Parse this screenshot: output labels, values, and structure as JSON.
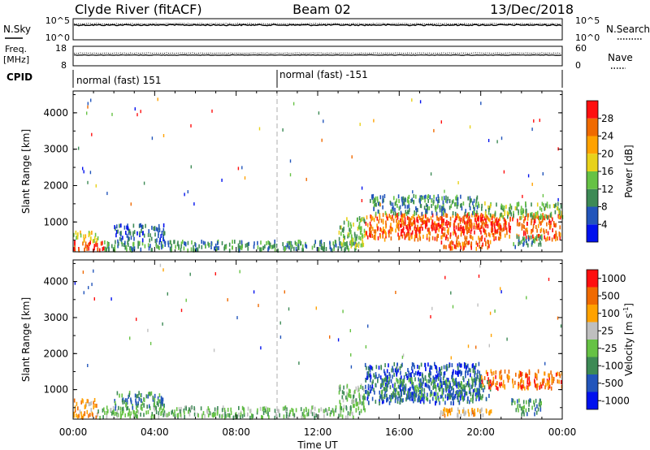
{
  "header": {
    "station": "Clyde River (fitACF)",
    "beam": "Beam 02",
    "date": "13/Dec/2018"
  },
  "chart_data": [
    {
      "type": "line",
      "panel": "noise",
      "left_label": "N.Sky",
      "right_label": "N.Search",
      "left_ticks": [
        "10^5",
        "10^0"
      ],
      "right_ticks": [
        "10^5",
        "10^0"
      ],
      "series": [
        {
          "name": "N.Sky",
          "style": "solid",
          "value_level": 0.3
        },
        {
          "name": "N.Search",
          "style": "dotted",
          "value_level": 0.3
        }
      ]
    },
    {
      "type": "line",
      "panel": "frequency",
      "left_label_lines": [
        "Freq.",
        "[MHz]"
      ],
      "right_label": "Nave",
      "left_ticks": [
        "18",
        "8"
      ],
      "right_ticks": [
        "60",
        "0"
      ],
      "series": [
        {
          "name": "Freq.",
          "style": "solid",
          "value_level": 0.45
        },
        {
          "name": "Nave",
          "style": "dotted",
          "value_level": 0.55
        }
      ]
    },
    {
      "type": "table",
      "panel": "cpid",
      "label": "CPID",
      "entries": [
        {
          "start_hour": 0,
          "text": "normal (fast) 151"
        },
        {
          "start_hour": 10,
          "text": "normal (fast) -151"
        }
      ]
    },
    {
      "type": "heatmap",
      "panel": "power",
      "ylabel": "Slant Range [km]",
      "yticks": [
        "1000",
        "2000",
        "3000",
        "4000"
      ],
      "ylim": [
        180,
        4600
      ],
      "colorbar": {
        "label": "Power [dB]",
        "ticks": [
          "4",
          "8",
          "12",
          "16",
          "20",
          "24",
          "28"
        ],
        "colors": [
          "#0011ee",
          "#2255bb",
          "#3d8a55",
          "#66c244",
          "#e8d21a",
          "#ffa200",
          "#f06a00",
          "#ff0f0f"
        ]
      },
      "regions": [
        {
          "t0": 0.0,
          "t1": 1.5,
          "r0": 200,
          "r1": 450,
          "level": 7
        },
        {
          "t0": 0.0,
          "t1": 1.2,
          "r0": 450,
          "r1": 700,
          "level": 4
        },
        {
          "t0": 1.5,
          "t1": 14.0,
          "r0": 200,
          "r1": 450,
          "level": 2
        },
        {
          "t0": 2.0,
          "t1": 4.5,
          "r0": 450,
          "r1": 900,
          "level": 1
        },
        {
          "t0": 13.0,
          "t1": 14.3,
          "r0": 300,
          "r1": 1100,
          "level": 3
        },
        {
          "t0": 14.3,
          "t1": 23.9,
          "r0": 500,
          "r1": 1200,
          "level": 6
        },
        {
          "t0": 16.0,
          "t1": 21.5,
          "r0": 700,
          "r1": 1100,
          "level": 7
        },
        {
          "t0": 14.5,
          "t1": 20.0,
          "r0": 1200,
          "r1": 1700,
          "level": 2
        },
        {
          "t0": 20.0,
          "t1": 24.0,
          "r0": 1100,
          "r1": 1500,
          "level": 3
        },
        {
          "t0": 18.0,
          "t1": 20.5,
          "r0": 250,
          "r1": 450,
          "level": 6
        },
        {
          "t0": 21.5,
          "t1": 23.0,
          "r0": 300,
          "r1": 600,
          "level": 2
        }
      ]
    },
    {
      "type": "heatmap",
      "panel": "velocity",
      "ylabel": "Slant Range [km]",
      "yticks": [
        "1000",
        "2000",
        "3000",
        "4000"
      ],
      "ylim": [
        180,
        4600
      ],
      "xlabel": "Time UT",
      "xticks": [
        "00:00",
        "04:00",
        "08:00",
        "12:00",
        "16:00",
        "20:00",
        "00:00"
      ],
      "colorbar": {
        "label": "Velocity [m s",
        "label_sup": "-1",
        "label_end": "]",
        "ticks": [
          "1000",
          "500",
          "100",
          "25",
          "-25",
          "-100",
          "-500",
          "-1000"
        ],
        "colors": [
          "#0011ee",
          "#2255bb",
          "#3d8a55",
          "#66c244",
          "#bfbfbf",
          "#ffa200",
          "#f06a00",
          "#ff0f0f"
        ]
      },
      "regions": [
        {
          "t0": 0.0,
          "t1": 1.2,
          "r0": 200,
          "r1": 700,
          "level": 5
        },
        {
          "t0": 1.2,
          "t1": 14.0,
          "r0": 200,
          "r1": 500,
          "level": 3
        },
        {
          "t0": 2.0,
          "t1": 4.5,
          "r0": 450,
          "r1": 900,
          "level": 2
        },
        {
          "t0": 13.0,
          "t1": 14.3,
          "r0": 300,
          "r1": 1100,
          "level": 3
        },
        {
          "t0": 14.3,
          "t1": 20.0,
          "r0": 600,
          "r1": 1700,
          "level": 1
        },
        {
          "t0": 15.0,
          "t1": 20.5,
          "r0": 700,
          "r1": 1300,
          "level": 2
        },
        {
          "t0": 20.0,
          "t1": 24.0,
          "r0": 1000,
          "r1": 1500,
          "level": 6
        },
        {
          "t0": 18.0,
          "t1": 20.5,
          "r0": 250,
          "r1": 450,
          "level": 5
        },
        {
          "t0": 21.5,
          "t1": 23.0,
          "r0": 300,
          "r1": 700,
          "level": 2
        }
      ]
    }
  ]
}
